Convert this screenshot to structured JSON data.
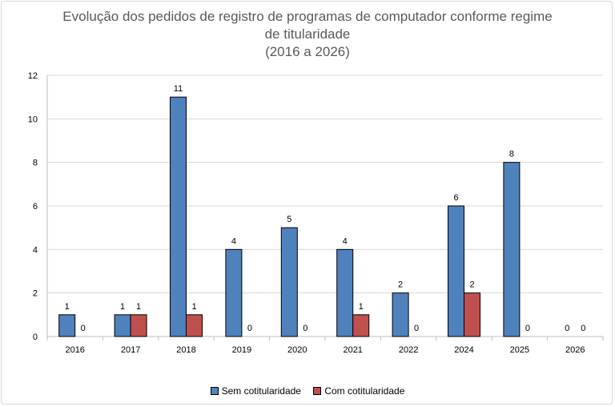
{
  "chart_data": {
    "type": "bar",
    "title_lines": [
      "Evolução dos pedidos de registro de programas de computador conforme regime",
      "de titularidade",
      "(2016 a 2026)"
    ],
    "categories": [
      "2016",
      "2017",
      "2018",
      "2019",
      "2020",
      "2021",
      "2022",
      "2024",
      "2025",
      "2026"
    ],
    "series": [
      {
        "name": "Sem cotitularidade",
        "color": "#4f81bd",
        "values": [
          1,
          1,
          11,
          4,
          5,
          4,
          2,
          6,
          8,
          0
        ]
      },
      {
        "name": "Com cotitularidade",
        "color": "#c0504d",
        "values": [
          0,
          1,
          1,
          0,
          0,
          1,
          0,
          2,
          0,
          0
        ]
      }
    ],
    "ylim": [
      0,
      12
    ],
    "yticks": [
      0,
      2,
      4,
      6,
      8,
      10,
      12
    ],
    "grid": true,
    "legend_position": "bottom",
    "data_labels": true
  }
}
